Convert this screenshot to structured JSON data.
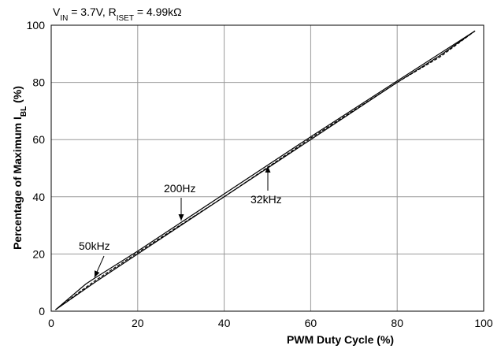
{
  "chart_data": {
    "type": "line",
    "title": [
      {
        "text": "V"
      },
      {
        "text": "IN",
        "sub": true
      },
      {
        "text": " = 3.7V, R"
      },
      {
        "text": "ISET",
        "sub": true
      },
      {
        "text": " = 4.99kΩ"
      }
    ],
    "x_label": "PWM Duty Cycle (%)",
    "y_label": [
      {
        "text": "Percentage of Maximum I"
      },
      {
        "text": "BL",
        "sub": true
      },
      {
        "text": " (%)"
      }
    ],
    "xlim": [
      0,
      100
    ],
    "xticks": [
      0,
      20,
      40,
      60,
      80,
      100
    ],
    "ylim": [
      0,
      100
    ],
    "yticks": [
      0,
      20,
      40,
      60,
      80,
      100
    ],
    "grid": true,
    "series": [
      {
        "name": "50kHz",
        "color": "#000000",
        "dash": false,
        "x": [
          1,
          8,
          10,
          20,
          40,
          60,
          80,
          98
        ],
        "values": [
          0.5,
          9.5,
          11.5,
          21,
          41,
          61,
          80.5,
          98
        ]
      },
      {
        "name": "200Hz",
        "color": "#000000",
        "dash": true,
        "x": [
          1,
          5,
          10,
          20,
          40,
          60,
          80,
          90,
          98
        ],
        "values": [
          0.5,
          5,
          10.5,
          20.5,
          40,
          60.5,
          80,
          89,
          98
        ]
      },
      {
        "name": "32kHz",
        "color": "#000000",
        "dash": false,
        "x": [
          1,
          10,
          20,
          40,
          60,
          80,
          90,
          98
        ],
        "values": [
          0.5,
          10,
          20,
          40,
          60,
          80,
          89.5,
          98
        ]
      }
    ]
  }
}
